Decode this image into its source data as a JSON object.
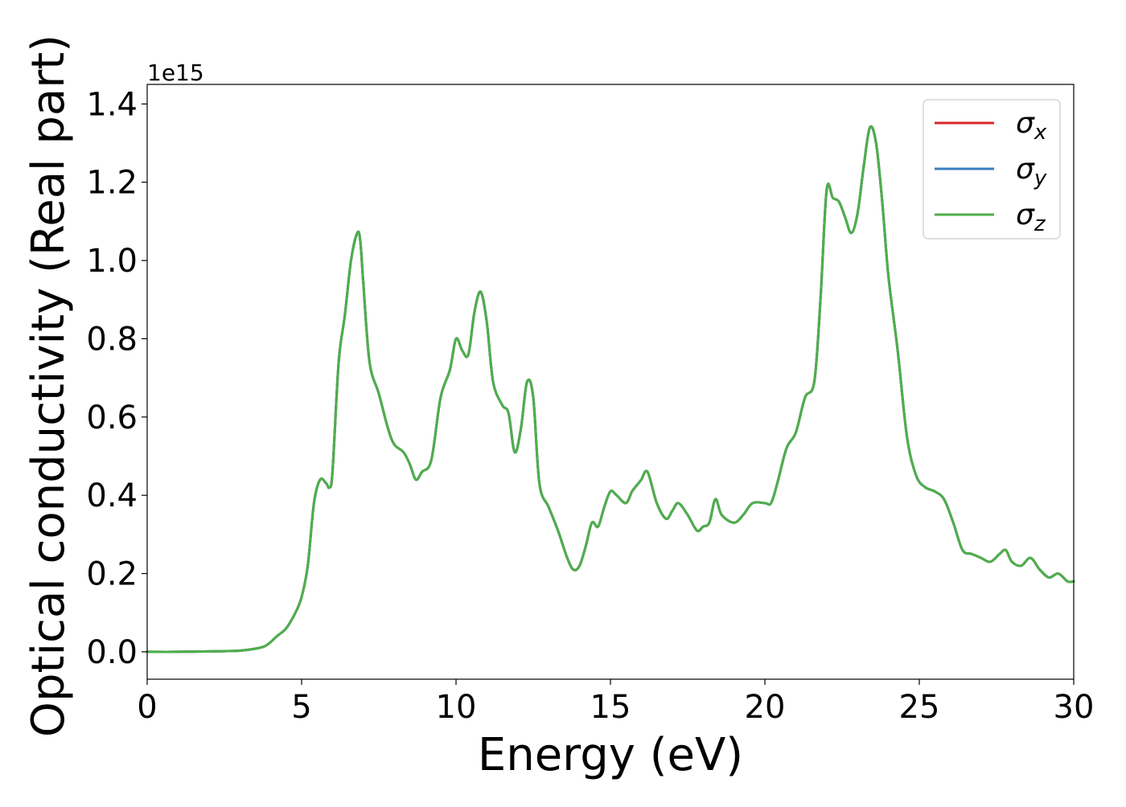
{
  "chart_data": {
    "type": "line",
    "xlabel": "Energy (eV)",
    "ylabel": "Optical conductivity (Real part)",
    "offset_text": "1e15",
    "xlim": [
      0,
      30
    ],
    "ylim": [
      -0.07,
      1.45
    ],
    "xticks": [
      0,
      5,
      10,
      15,
      20,
      25,
      30
    ],
    "xtick_labels": [
      "0",
      "5",
      "10",
      "15",
      "20",
      "25",
      "30"
    ],
    "yticks": [
      0.0,
      0.2,
      0.4,
      0.6,
      0.8,
      1.0,
      1.2,
      1.4
    ],
    "ytick_labels": [
      "0.0",
      "0.2",
      "0.4",
      "0.6",
      "0.8",
      "1.0",
      "1.2",
      "1.4"
    ],
    "grid": false,
    "legend_position": "top-right",
    "x": [
      0,
      1,
      2,
      3,
      3.5,
      3.8,
      4.0,
      4.2,
      4.5,
      4.8,
      5.0,
      5.2,
      5.4,
      5.6,
      5.8,
      5.9,
      6.0,
      6.2,
      6.4,
      6.6,
      6.8,
      6.9,
      7.0,
      7.2,
      7.5,
      7.8,
      8.0,
      8.3,
      8.5,
      8.7,
      8.9,
      9.2,
      9.5,
      9.8,
      10.0,
      10.2,
      10.4,
      10.6,
      10.8,
      11.0,
      11.2,
      11.5,
      11.7,
      11.9,
      12.1,
      12.3,
      12.5,
      12.7,
      13.0,
      13.3,
      13.6,
      13.8,
      14.0,
      14.2,
      14.4,
      14.6,
      14.8,
      15.0,
      15.2,
      15.5,
      15.7,
      15.9,
      16.0,
      16.2,
      16.5,
      16.8,
      17.0,
      17.2,
      17.5,
      17.8,
      18.0,
      18.2,
      18.4,
      18.6,
      19.0,
      19.3,
      19.6,
      20.0,
      20.2,
      20.4,
      20.7,
      21.0,
      21.3,
      21.6,
      21.8,
      22.0,
      22.2,
      22.4,
      22.6,
      22.8,
      23.0,
      23.2,
      23.4,
      23.6,
      23.8,
      24.0,
      24.3,
      24.6,
      24.9,
      25.2,
      25.5,
      25.8,
      26.1,
      26.4,
      26.7,
      27.0,
      27.3,
      27.6,
      27.8,
      28.0,
      28.3,
      28.6,
      28.9,
      29.2,
      29.5,
      29.8,
      30.0
    ],
    "series": [
      {
        "name": "σx",
        "values": [
          0,
          0,
          0.001,
          0.003,
          0.008,
          0.014,
          0.025,
          0.04,
          0.06,
          0.1,
          0.14,
          0.22,
          0.38,
          0.44,
          0.43,
          0.42,
          0.46,
          0.74,
          0.86,
          1.0,
          1.07,
          1.05,
          0.94,
          0.74,
          0.66,
          0.57,
          0.53,
          0.51,
          0.48,
          0.44,
          0.46,
          0.49,
          0.65,
          0.72,
          0.8,
          0.77,
          0.76,
          0.87,
          0.92,
          0.84,
          0.69,
          0.63,
          0.61,
          0.51,
          0.57,
          0.69,
          0.65,
          0.43,
          0.37,
          0.31,
          0.24,
          0.21,
          0.22,
          0.27,
          0.33,
          0.32,
          0.37,
          0.41,
          0.4,
          0.38,
          0.41,
          0.43,
          0.44,
          0.46,
          0.38,
          0.34,
          0.36,
          0.38,
          0.35,
          0.31,
          0.32,
          0.33,
          0.39,
          0.35,
          0.33,
          0.35,
          0.38,
          0.38,
          0.38,
          0.43,
          0.52,
          0.56,
          0.65,
          0.69,
          0.9,
          1.18,
          1.16,
          1.15,
          1.11,
          1.07,
          1.12,
          1.24,
          1.34,
          1.3,
          1.15,
          0.96,
          0.77,
          0.55,
          0.45,
          0.42,
          0.41,
          0.39,
          0.33,
          0.26,
          0.25,
          0.24,
          0.23,
          0.25,
          0.26,
          0.23,
          0.22,
          0.24,
          0.21,
          0.19,
          0.2,
          0.18,
          0.18
        ]
      },
      {
        "name": "σy",
        "values": [
          0,
          0,
          0.001,
          0.003,
          0.008,
          0.014,
          0.025,
          0.04,
          0.06,
          0.1,
          0.14,
          0.22,
          0.38,
          0.44,
          0.43,
          0.42,
          0.46,
          0.74,
          0.86,
          1.0,
          1.07,
          1.05,
          0.94,
          0.74,
          0.66,
          0.57,
          0.53,
          0.51,
          0.48,
          0.44,
          0.46,
          0.49,
          0.65,
          0.72,
          0.8,
          0.77,
          0.76,
          0.87,
          0.92,
          0.84,
          0.69,
          0.63,
          0.61,
          0.51,
          0.57,
          0.69,
          0.65,
          0.43,
          0.37,
          0.31,
          0.24,
          0.21,
          0.22,
          0.27,
          0.33,
          0.32,
          0.37,
          0.41,
          0.4,
          0.38,
          0.41,
          0.43,
          0.44,
          0.46,
          0.38,
          0.34,
          0.36,
          0.38,
          0.35,
          0.31,
          0.32,
          0.33,
          0.39,
          0.35,
          0.33,
          0.35,
          0.38,
          0.38,
          0.38,
          0.43,
          0.52,
          0.56,
          0.65,
          0.69,
          0.9,
          1.18,
          1.16,
          1.15,
          1.11,
          1.07,
          1.12,
          1.24,
          1.34,
          1.3,
          1.15,
          0.96,
          0.77,
          0.55,
          0.45,
          0.42,
          0.41,
          0.39,
          0.33,
          0.26,
          0.25,
          0.24,
          0.23,
          0.25,
          0.26,
          0.23,
          0.22,
          0.24,
          0.21,
          0.19,
          0.2,
          0.18,
          0.18
        ]
      },
      {
        "name": "σz",
        "values": [
          0,
          0,
          0.001,
          0.003,
          0.008,
          0.014,
          0.025,
          0.04,
          0.06,
          0.1,
          0.14,
          0.22,
          0.38,
          0.44,
          0.43,
          0.42,
          0.46,
          0.74,
          0.86,
          1.0,
          1.07,
          1.05,
          0.94,
          0.74,
          0.66,
          0.57,
          0.53,
          0.51,
          0.48,
          0.44,
          0.46,
          0.49,
          0.65,
          0.72,
          0.8,
          0.77,
          0.76,
          0.87,
          0.92,
          0.84,
          0.69,
          0.63,
          0.61,
          0.51,
          0.57,
          0.69,
          0.65,
          0.43,
          0.37,
          0.31,
          0.24,
          0.21,
          0.22,
          0.27,
          0.33,
          0.32,
          0.37,
          0.41,
          0.4,
          0.38,
          0.41,
          0.43,
          0.44,
          0.46,
          0.38,
          0.34,
          0.36,
          0.38,
          0.35,
          0.31,
          0.32,
          0.33,
          0.39,
          0.35,
          0.33,
          0.35,
          0.38,
          0.38,
          0.38,
          0.43,
          0.52,
          0.56,
          0.65,
          0.69,
          0.9,
          1.18,
          1.16,
          1.15,
          1.11,
          1.07,
          1.12,
          1.24,
          1.34,
          1.3,
          1.15,
          0.96,
          0.77,
          0.55,
          0.45,
          0.42,
          0.41,
          0.39,
          0.33,
          0.26,
          0.25,
          0.24,
          0.23,
          0.25,
          0.26,
          0.23,
          0.22,
          0.24,
          0.21,
          0.19,
          0.2,
          0.18,
          0.18
        ]
      }
    ],
    "legend": [
      {
        "label": "σx",
        "symbol": "σ",
        "subscript": "x",
        "color": "#d62728"
      },
      {
        "label": "σy",
        "symbol": "σ",
        "subscript": "y",
        "color": "#3a7ebf"
      },
      {
        "label": "σz",
        "symbol": "σ",
        "subscript": "z",
        "color": "#4daf4a"
      }
    ]
  }
}
